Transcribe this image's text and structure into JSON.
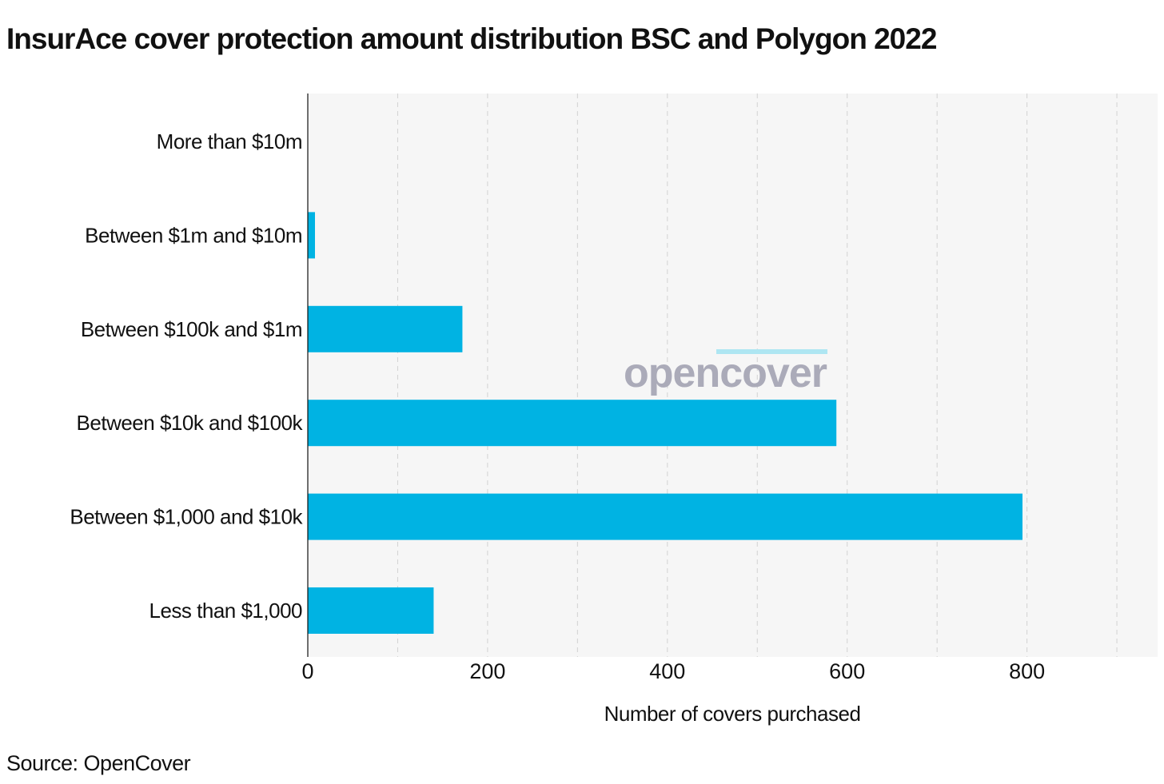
{
  "colors": {
    "bar": "#00b3e3",
    "plot_background": "#f6f6f6",
    "grid": "#d2d2d2",
    "watermark_text": "#ababb9",
    "watermark_accent": "#aee6f2"
  },
  "watermark": {
    "text": "opencover"
  },
  "source": "Source: OpenCover",
  "chart_data": {
    "type": "bar",
    "orientation": "horizontal",
    "title": "InsurAce cover protection amount distribution BSC and Polygon 2022",
    "categories": [
      "More than $10m",
      "Between $1m and $10m",
      "Between $100k and $1m",
      "Between $10k and $100k",
      "Between $1,000 and $10k",
      "Less than $1,000"
    ],
    "values": [
      0,
      8,
      172,
      588,
      795,
      140
    ],
    "xlabel": "Number of covers purchased",
    "ylabel": "",
    "xlim": [
      0,
      945
    ],
    "xticks": [
      0,
      200,
      400,
      600,
      800
    ],
    "grid": true,
    "gridlines_at": [
      100,
      200,
      300,
      400,
      500,
      600,
      700,
      800,
      900
    ]
  }
}
